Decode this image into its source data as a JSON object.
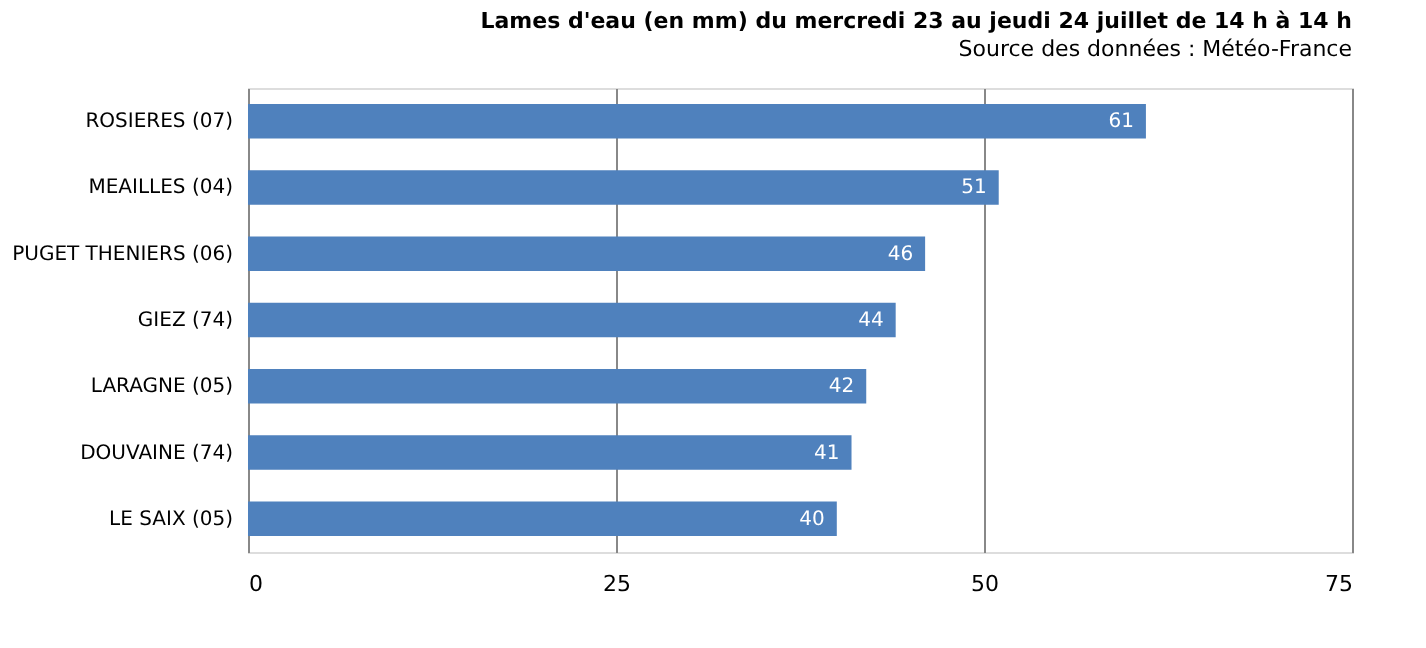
{
  "chart_data": {
    "type": "bar",
    "orientation": "horizontal",
    "title": "Lames d'eau (en mm) du mercredi 23 au jeudi 24 juillet de 14 h à 14 h",
    "annotations": [
      "Source des données : Météo-France"
    ],
    "categories": [
      "ROSIERES (07)",
      "MEAILLES (04)",
      "PUGET THENIERS (06)",
      "GIEZ (74)",
      "LARAGNE (05)",
      "DOUVAINE (74)",
      "LE SAIX (05)"
    ],
    "values": [
      61,
      51,
      46,
      44,
      42,
      41,
      40
    ],
    "color": "#4f81bd",
    "xlim": [
      0,
      75
    ],
    "xticks": [
      0,
      25,
      50,
      75
    ],
    "grid": "x",
    "data_labels": true
  }
}
